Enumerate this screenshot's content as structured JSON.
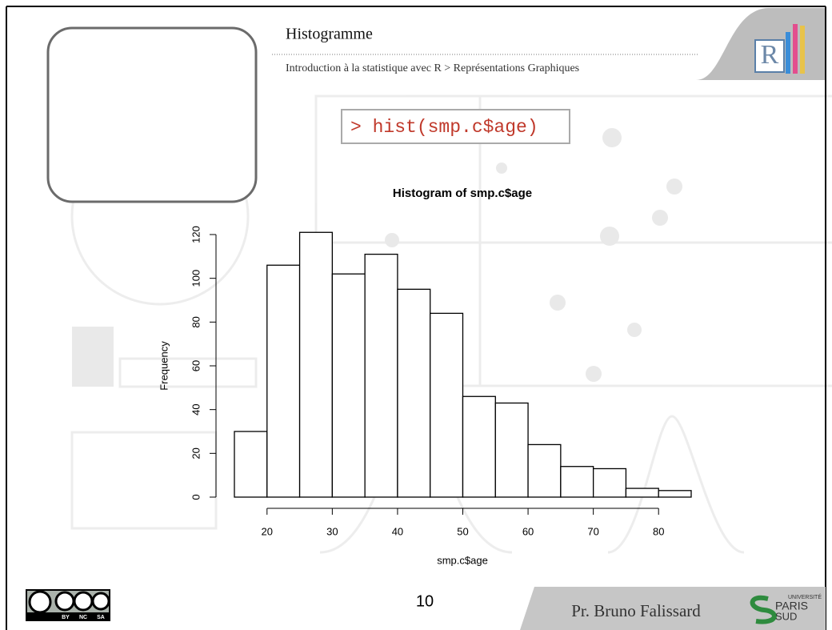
{
  "slide": {
    "title": "Histogramme",
    "breadcrumb": "Introduction à la statistique avec R > Représentations Graphiques",
    "code": "> hist(smp.c$age)",
    "page_number": "10",
    "author": "Pr. Bruno Falissard",
    "logo_letter": "R",
    "license_terms": [
      "BY",
      "NC",
      "SA"
    ],
    "university": [
      "UNIVERSITÉ",
      "PARIS",
      "SUD"
    ]
  },
  "chart_data": {
    "type": "histogram",
    "title": "Histogram of smp.c$age",
    "x_label": "smp.c$age",
    "y_label": "Frequency",
    "bins": [
      15,
      20,
      25,
      30,
      35,
      40,
      45,
      50,
      55,
      60,
      65,
      70,
      75,
      80,
      85
    ],
    "values": [
      30,
      106,
      121,
      102,
      111,
      95,
      84,
      46,
      43,
      24,
      14,
      13,
      4,
      3
    ],
    "xlim": [
      15,
      85
    ],
    "ylim": [
      0,
      120
    ],
    "xticks": [
      20,
      30,
      40,
      50,
      60,
      70,
      80
    ],
    "yticks": [
      0,
      20,
      40,
      60,
      80,
      100,
      120
    ],
    "color": "#ffffff",
    "edge_color": "#000000"
  }
}
